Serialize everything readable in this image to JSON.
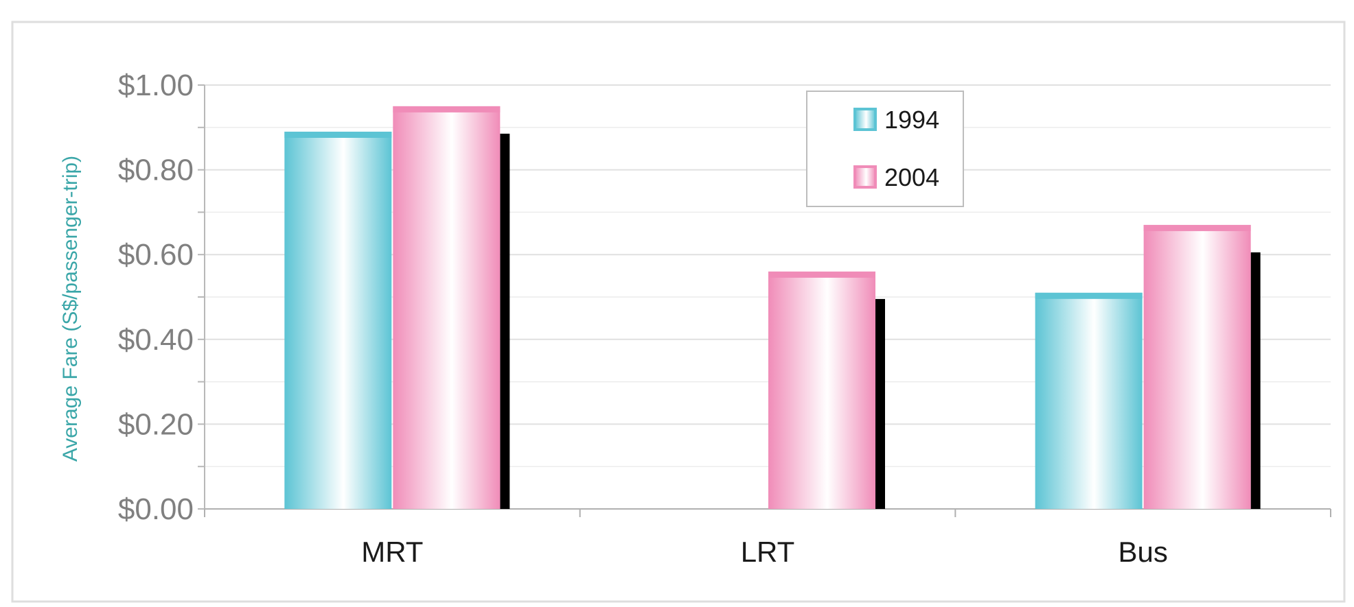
{
  "chart_data": {
    "type": "bar",
    "title": "",
    "xlabel": "",
    "ylabel": "Average Fare (S$/passenger-trip)",
    "categories": [
      "MRT",
      "LRT",
      "Bus"
    ],
    "series": [
      {
        "name": "1994",
        "values": [
          0.89,
          null,
          0.51
        ]
      },
      {
        "name": "2004",
        "values": [
          0.95,
          0.56,
          0.67
        ]
      }
    ],
    "ylim": [
      0,
      1.0
    ],
    "yticks": [
      0,
      0.2,
      0.4,
      0.6,
      0.8,
      1.0
    ],
    "ytick_labels": [
      "$0.00",
      "$0.20",
      "$0.40",
      "$0.60",
      "$0.80",
      "$1.00"
    ],
    "grid": true,
    "legend_position": "top-center",
    "colors": {
      "series_1994": "#5cc4d4",
      "series_2004": "#f08cb8",
      "ylabel": "#3aa6a8",
      "tick_text": "#808080",
      "category_text": "#1a1a1a",
      "grid": "#e2e2e2"
    }
  }
}
